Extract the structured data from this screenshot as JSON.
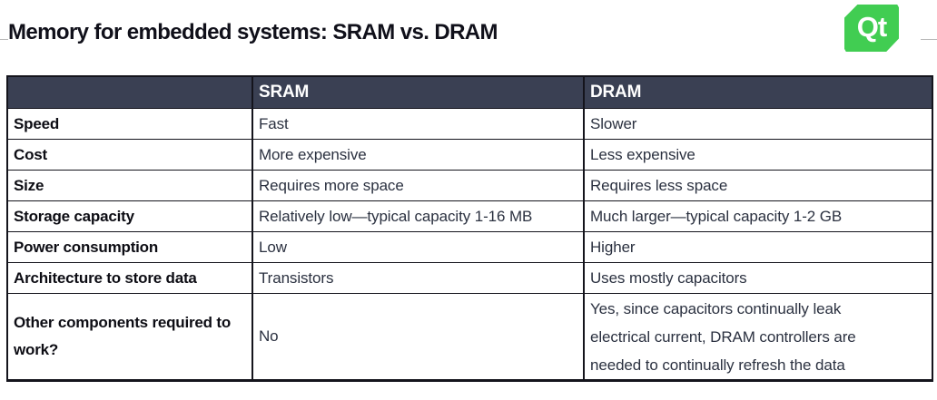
{
  "page": {
    "title": "Memory for embedded systems: SRAM vs. DRAM"
  },
  "logo": {
    "text": "Qt",
    "color": "#41cd52"
  },
  "table": {
    "columns": [
      "",
      "SRAM",
      "DRAM"
    ],
    "rows": [
      {
        "label": "Speed",
        "sram": "Fast",
        "dram": "Slower"
      },
      {
        "label": "Cost",
        "sram": "More expensive",
        "dram": "Less expensive"
      },
      {
        "label": "Size",
        "sram": "Requires more space",
        "dram": "Requires less space"
      },
      {
        "label": "Storage capacity",
        "sram": "Relatively low—typical capacity 1-16 MB",
        "dram": "Much larger—typical capacity 1-2 GB"
      },
      {
        "label": "Power consumption",
        "sram": "Low",
        "dram": "Higher"
      },
      {
        "label": "Architecture to store data",
        "sram": "Transistors",
        "dram": "Uses mostly capacitors"
      },
      {
        "label": "Other components required to work?",
        "sram": "No",
        "dram": "Yes, since capacitors continually leak\nelectrical current, DRAM controllers are\nneeded to continually refresh the data"
      }
    ],
    "colors": {
      "header_bg": "#3a4053",
      "header_text": "#ffffff",
      "body_text": "#2b3140",
      "border": "#14141c"
    }
  }
}
